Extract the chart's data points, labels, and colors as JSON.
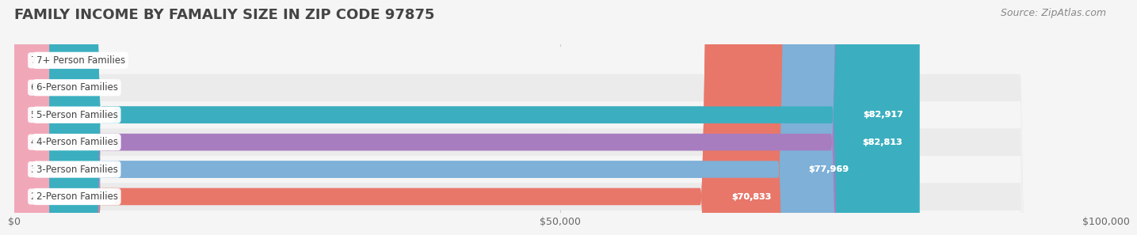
{
  "title": "FAMILY INCOME BY FAMALIY SIZE IN ZIP CODE 97875",
  "source": "Source: ZipAtlas.com",
  "categories": [
    "2-Person Families",
    "3-Person Families",
    "4-Person Families",
    "5-Person Families",
    "6-Person Families",
    "7+ Person Families"
  ],
  "values": [
    70833,
    77969,
    82813,
    82917,
    0,
    0
  ],
  "bar_colors": [
    "#E8776A",
    "#7EB0D8",
    "#A87DBF",
    "#3BAFBF",
    "#B0B8E8",
    "#F0A8B8"
  ],
  "label_colors": [
    "#E8776A",
    "#7EB0D8",
    "#A87DBF",
    "#3BAFBF",
    "#B0B8E8",
    "#F0A8B8"
  ],
  "xlim": [
    0,
    100000
  ],
  "xticks": [
    0,
    50000,
    100000
  ],
  "xtick_labels": [
    "$0",
    "$50,000",
    "$100,000"
  ],
  "bar_height": 0.62,
  "background_color": "#f5f5f5",
  "title_color": "#444444",
  "title_fontsize": 13,
  "source_fontsize": 9,
  "label_fontsize": 8.5,
  "value_fontsize": 8,
  "value_color": "#ffffff",
  "zero_value_color": "#555555"
}
